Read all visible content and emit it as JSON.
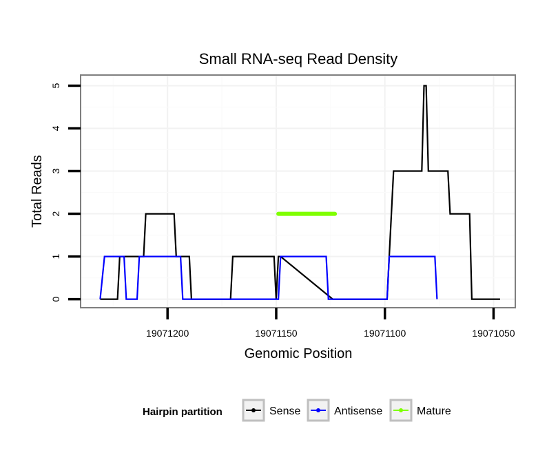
{
  "chart_data": {
    "type": "line",
    "title": "Small RNA-seq Read Density",
    "xlabel": "Genomic Position",
    "ylabel": "Total Reads",
    "xlim": [
      19071240,
      19071040
    ],
    "ylim": [
      -0.2,
      5.25
    ],
    "x_ticks": [
      {
        "value": 19071200,
        "label": "19071200"
      },
      {
        "value": 19071150,
        "label": "19071150"
      },
      {
        "value": 19071100,
        "label": "19071100"
      },
      {
        "value": 19071050,
        "label": "19071050"
      }
    ],
    "y_ticks": [
      {
        "value": 0,
        "label": "0"
      },
      {
        "value": 1,
        "label": "1"
      },
      {
        "value": 2,
        "label": "2"
      },
      {
        "value": 3,
        "label": "3"
      },
      {
        "value": 4,
        "label": "4"
      },
      {
        "value": 5,
        "label": "5"
      }
    ],
    "grid": true,
    "legend": {
      "title": "Hairpin partition",
      "position": "bottom",
      "entries": [
        "Sense",
        "Antisense",
        "Mature"
      ]
    },
    "series": [
      {
        "name": "Sense",
        "color": "#000000",
        "x": [
          19071231,
          19071223,
          19071222,
          19071211,
          19071210,
          19071197,
          19071196,
          19071190,
          19071189,
          19071181,
          19071171,
          19071170,
          19071151,
          19071150,
          19071149,
          19071148,
          19071124,
          19071123,
          19071099,
          19071098,
          19071096,
          19071083,
          19071082,
          19071081,
          19071080,
          19071078,
          19071071,
          19071070,
          19071061,
          19071060,
          19071051,
          19071047
        ],
        "y": [
          0,
          0,
          1,
          1,
          2,
          2,
          1,
          1,
          0,
          0,
          0,
          1,
          1,
          0,
          1,
          1,
          0,
          0,
          0,
          1,
          3,
          3,
          5,
          5,
          3,
          3,
          3,
          2,
          2,
          0,
          0,
          0
        ]
      },
      {
        "name": "Antisense",
        "color": "#0000ff",
        "x": [
          19071231,
          19071229,
          19071220,
          19071219,
          19071214,
          19071213,
          19071200,
          19071199,
          19071194,
          19071193,
          19071171,
          19071170,
          19071149,
          19071148,
          19071127,
          19071126,
          19071099,
          19071098,
          19071077,
          19071076
        ],
        "y": [
          0,
          1,
          1,
          0,
          0,
          1,
          1,
          1,
          1,
          0,
          0,
          0,
          0,
          1,
          1,
          0,
          0,
          1,
          1,
          0
        ]
      },
      {
        "name": "Mature",
        "color": "#7fff00",
        "x": [
          19071149,
          19071123
        ],
        "y": [
          2,
          2
        ]
      }
    ]
  }
}
